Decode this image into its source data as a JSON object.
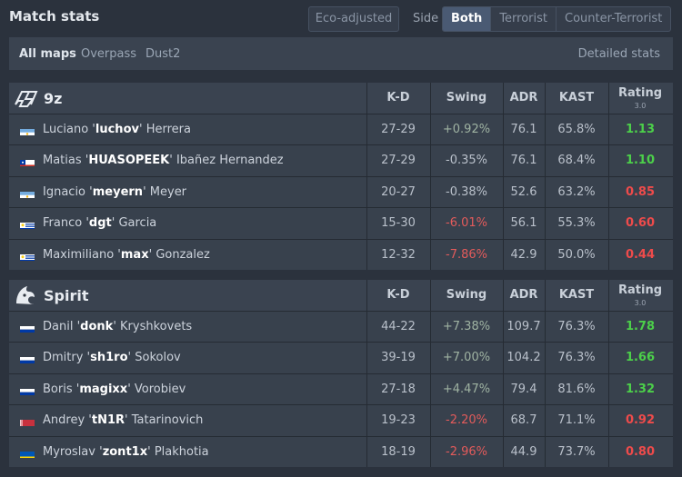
{
  "header": {
    "title": "Match stats",
    "eco_label": "Eco-adjusted",
    "side_label": "Side",
    "side_options": [
      "Both",
      "Terrorist",
      "Counter-Terrorist"
    ],
    "side_selected": "Both"
  },
  "maps": {
    "items": [
      "All maps",
      "Overpass",
      "Dust2"
    ],
    "selected": "All maps",
    "detailed_label": "Detailed stats"
  },
  "columns": {
    "kd": "K-D",
    "swing": "Swing",
    "adr": "ADR",
    "kast": "KAST",
    "rating": "Rating",
    "rating_version": "3.0"
  },
  "colors": {
    "positive_rating": "#4cd04a",
    "negative_rating": "#ef4b4b",
    "negative_swing": "#e35b5b"
  },
  "teams": [
    {
      "name": "9z",
      "logo": "9z-logo-icon",
      "players": [
        {
          "first": "Luciano",
          "nick": "luchov",
          "last": "Herrera",
          "flag": "argentina-flag-icon",
          "kd": "27-29",
          "swing": "+0.92%",
          "swing_sign": "pos",
          "adr": "76.1",
          "kast": "65.8%",
          "rating": "1.13",
          "rating_class": "good"
        },
        {
          "first": "Matias",
          "nick": "HUASOPEEK",
          "last": "Ibañez Hernandez",
          "flag": "chile-flag-icon",
          "kd": "27-29",
          "swing": "-0.35%",
          "swing_sign": "dim",
          "adr": "76.1",
          "kast": "68.4%",
          "rating": "1.10",
          "rating_class": "good"
        },
        {
          "first": "Ignacio",
          "nick": "meyern",
          "last": "Meyer",
          "flag": "argentina-flag-icon",
          "kd": "20-27",
          "swing": "-0.38%",
          "swing_sign": "dim",
          "adr": "52.6",
          "kast": "63.2%",
          "rating": "0.85",
          "rating_class": "bad"
        },
        {
          "first": "Franco",
          "nick": "dgt",
          "last": "Garcia",
          "flag": "uruguay-flag-icon",
          "kd": "15-30",
          "swing": "-6.01%",
          "swing_sign": "neg",
          "adr": "56.1",
          "kast": "55.3%",
          "rating": "0.60",
          "rating_class": "bad"
        },
        {
          "first": "Maximiliano",
          "nick": "max",
          "last": "Gonzalez",
          "flag": "uruguay-flag-icon",
          "kd": "12-32",
          "swing": "-7.86%",
          "swing_sign": "neg",
          "adr": "42.9",
          "kast": "50.0%",
          "rating": "0.44",
          "rating_class": "bad"
        }
      ]
    },
    {
      "name": "Spirit",
      "logo": "spirit-logo-icon",
      "players": [
        {
          "first": "Danil",
          "nick": "donk",
          "last": "Kryshkovets",
          "flag": "russia-flag-icon",
          "kd": "44-22",
          "swing": "+7.38%",
          "swing_sign": "pos",
          "adr": "109.7",
          "kast": "76.3%",
          "rating": "1.78",
          "rating_class": "good"
        },
        {
          "first": "Dmitry",
          "nick": "sh1ro",
          "last": "Sokolov",
          "flag": "russia-flag-icon",
          "kd": "39-19",
          "swing": "+7.00%",
          "swing_sign": "pos",
          "adr": "104.2",
          "kast": "76.3%",
          "rating": "1.66",
          "rating_class": "good"
        },
        {
          "first": "Boris",
          "nick": "magixx",
          "last": "Vorobiev",
          "flag": "russia-flag-icon",
          "kd": "27-18",
          "swing": "+4.47%",
          "swing_sign": "pos",
          "adr": "79.4",
          "kast": "81.6%",
          "rating": "1.32",
          "rating_class": "good"
        },
        {
          "first": "Andrey",
          "nick": "tN1R",
          "last": "Tatarinovich",
          "flag": "belarus-flag-icon",
          "kd": "19-23",
          "swing": "-2.20%",
          "swing_sign": "neg",
          "adr": "68.7",
          "kast": "71.1%",
          "rating": "0.92",
          "rating_class": "bad"
        },
        {
          "first": "Myroslav",
          "nick": "zont1x",
          "last": "Plakhotia",
          "flag": "ukraine-flag-icon",
          "kd": "18-19",
          "swing": "-2.96%",
          "swing_sign": "neg",
          "adr": "44.9",
          "kast": "73.7%",
          "rating": "0.80",
          "rating_class": "bad"
        }
      ]
    }
  ]
}
